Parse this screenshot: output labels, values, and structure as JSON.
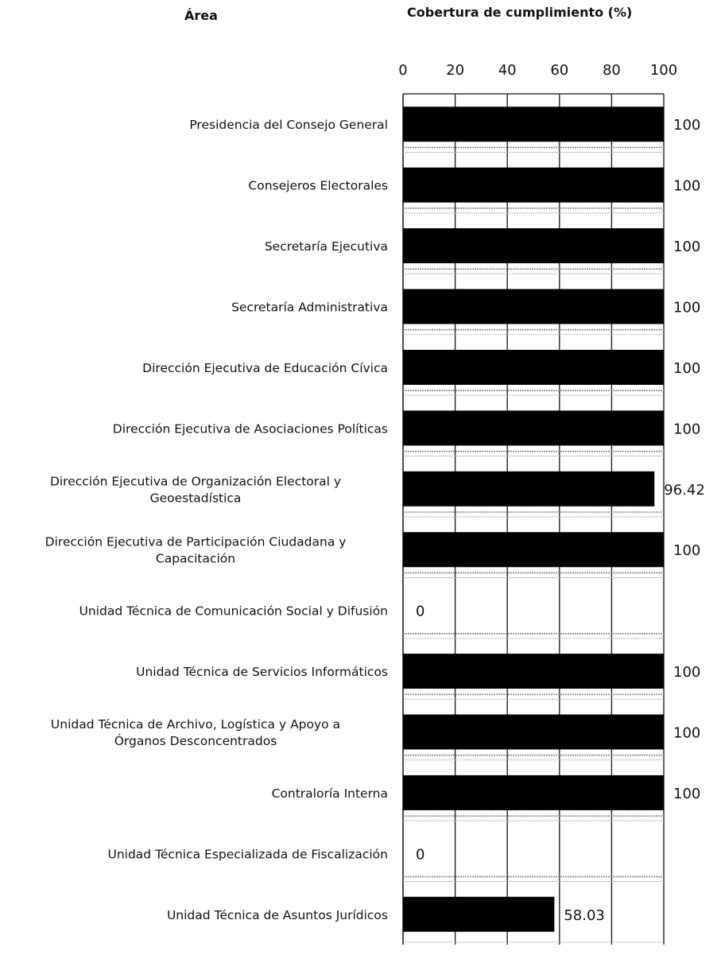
{
  "chart_data": {
    "type": "bar",
    "orientation": "horizontal",
    "title": "Cobertura de cumplimiento (%)",
    "category_header": "Área",
    "xlim": [
      0,
      100
    ],
    "xticks": [
      "0",
      "20",
      "40",
      "60",
      "80",
      "100"
    ],
    "grid": true,
    "bar_color": "#000000",
    "categories": [
      [
        "Presidencia del Consejo General"
      ],
      [
        "Consejeros Electorales"
      ],
      [
        "Secretaría Ejecutiva"
      ],
      [
        "Secretaría Administrativa"
      ],
      [
        "Dirección Ejecutiva de Educación Cívica"
      ],
      [
        "Dirección Ejecutiva de Asociaciones Políticas"
      ],
      [
        "Dirección Ejecutiva de Organización Electoral y",
        "Geoestadística"
      ],
      [
        "Dirección Ejecutiva de Participación Ciudadana y",
        "Capacitación"
      ],
      [
        "Unidad Técnica de Comunicación Social y Difusión"
      ],
      [
        "Unidad Técnica de Servicios Informáticos"
      ],
      [
        "Unidad Técnica de Archivo, Logística y Apoyo a",
        "Órganos Desconcentrados"
      ],
      [
        "Contraloría Interna"
      ],
      [
        "Unidad Técnica Especializada de Fiscalización"
      ],
      [
        "Unidad Técnica de Asuntos Jurídicos"
      ]
    ],
    "values": [
      100,
      100,
      100,
      100,
      100,
      100,
      96.42,
      100,
      0,
      100,
      100,
      100,
      0,
      58.03
    ],
    "value_labels": [
      "100",
      "100",
      "100",
      "100",
      "100",
      "100",
      "96.42",
      "100",
      "0",
      "100",
      "100",
      "100",
      "0",
      "58.03"
    ]
  }
}
